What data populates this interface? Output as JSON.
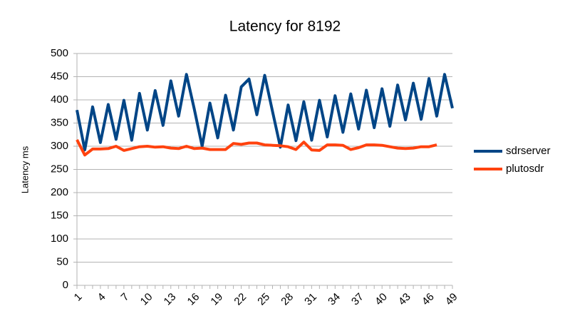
{
  "chart_data": {
    "type": "line",
    "title": "Latency for 8192",
    "y_label": "Latency ms",
    "categories": [
      "1",
      null,
      null,
      "4",
      null,
      null,
      "7",
      null,
      null,
      "10",
      null,
      null,
      "13",
      null,
      null,
      "16",
      null,
      null,
      "19",
      null,
      null,
      "22",
      null,
      null,
      "25",
      null,
      null,
      "28",
      null,
      null,
      "31",
      null,
      null,
      "34",
      null,
      null,
      "37",
      null,
      null,
      "40",
      null,
      null,
      "43",
      null,
      null,
      "46",
      null,
      null,
      "49"
    ],
    "series": [
      {
        "name": "sdrserver",
        "color": "#004586",
        "values": [
          378,
          292,
          385,
          308,
          390,
          315,
          399,
          313,
          414,
          335,
          420,
          345,
          441,
          365,
          455,
          380,
          300,
          393,
          318,
          410,
          335,
          428,
          445,
          368,
          453,
          375,
          298,
          389,
          312,
          396,
          313,
          399,
          320,
          409,
          330,
          413,
          337,
          421,
          340,
          424,
          343,
          432,
          357,
          436,
          358,
          446,
          365,
          455,
          382
        ]
      },
      {
        "name": "plutosdr",
        "color": "#ff420e",
        "values": [
          314,
          281,
          294,
          294,
          295,
          300,
          291,
          295,
          299,
          300,
          298,
          299,
          296,
          295,
          300,
          295,
          296,
          293,
          293,
          293,
          306,
          304,
          307,
          307,
          303,
          302,
          301,
          299,
          293,
          309,
          292,
          291,
          303,
          303,
          302,
          293,
          297,
          303,
          303,
          302,
          299,
          296,
          295,
          296,
          299,
          299,
          303,
          null,
          null
        ]
      }
    ],
    "ylim": [
      0,
      500
    ],
    "yticks": [
      0,
      50,
      100,
      150,
      200,
      250,
      300,
      350,
      400,
      450,
      500
    ],
    "grid": true,
    "legend": "right"
  }
}
